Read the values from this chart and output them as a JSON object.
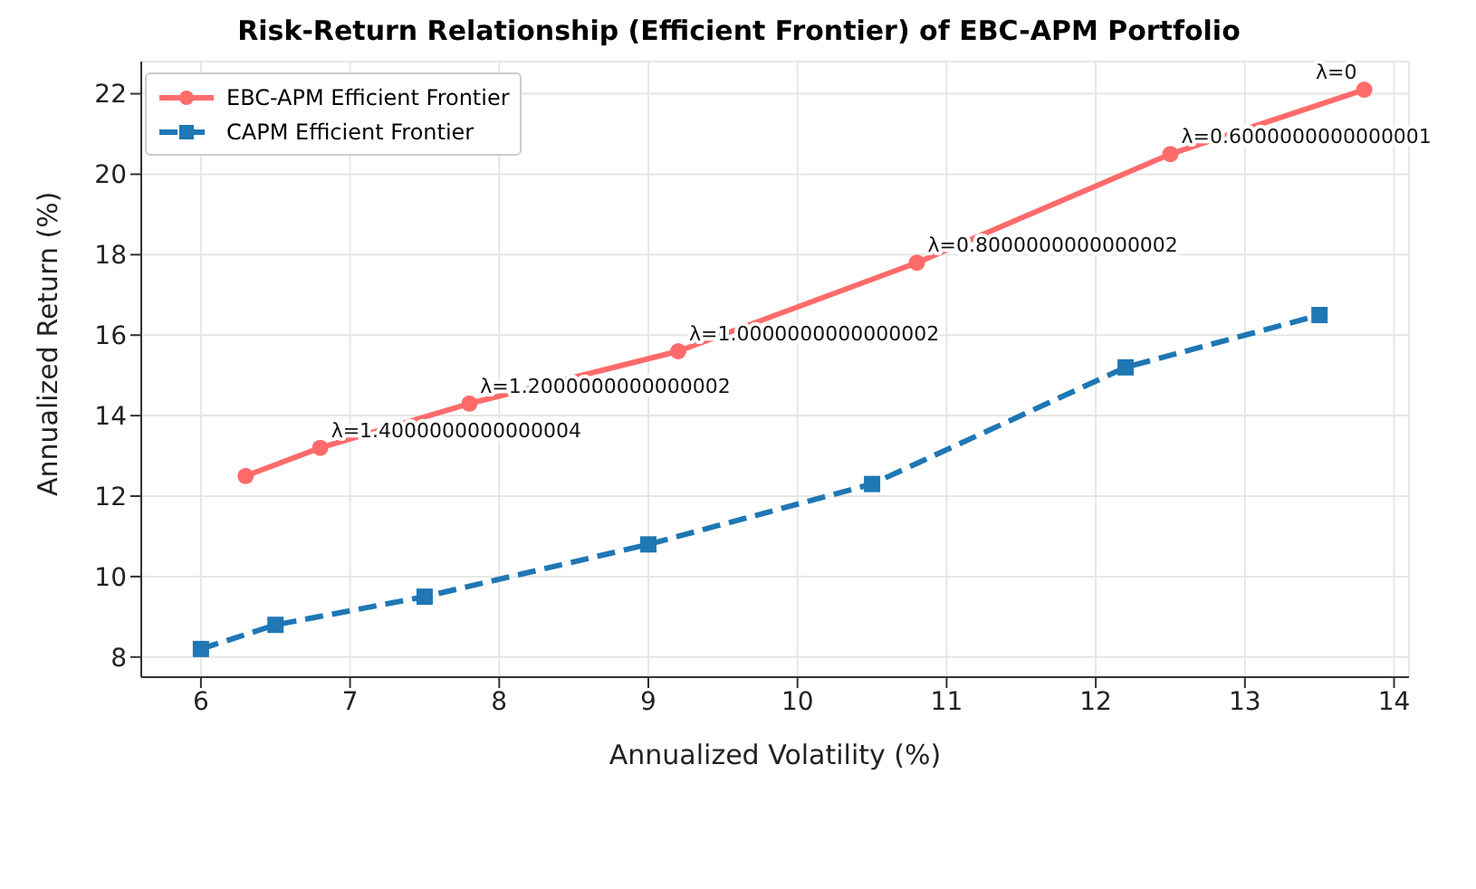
{
  "chart_data": {
    "type": "line",
    "title": "Risk-Return Relationship (Efficient Frontier) of EBC-APM Portfolio",
    "xlabel": "Annualized Volatility (%)",
    "ylabel": "Annualized Return (%)",
    "series": [
      {
        "name": "EBC-APM Efficient Frontier",
        "color": "#ff6b6b",
        "marker": "circle",
        "line_style": "solid",
        "x": [
          6.3,
          6.8,
          7.8,
          9.2,
          10.8,
          12.5,
          13.8
        ],
        "values": [
          12.5,
          13.2,
          14.3,
          15.6,
          17.8,
          20.5,
          22.1
        ]
      },
      {
        "name": "CAPM Efficient Frontier",
        "color": "#1f77b4",
        "marker": "square",
        "line_style": "dashed",
        "x": [
          6.0,
          6.5,
          7.5,
          9.0,
          10.5,
          12.2,
          13.5
        ],
        "values": [
          8.2,
          8.8,
          9.5,
          10.8,
          12.3,
          15.2,
          16.5
        ]
      }
    ],
    "annotations": [
      {
        "text": "λ=1.4000000000000004",
        "x": 6.8,
        "y": 13.2
      },
      {
        "text": "λ=1.2000000000000002",
        "x": 7.8,
        "y": 14.3
      },
      {
        "text": "λ=1.0000000000000002",
        "x": 9.2,
        "y": 15.6
      },
      {
        "text": "λ=0.8000000000000002",
        "x": 10.8,
        "y": 17.8
      },
      {
        "text": "λ=0.6000000000000001",
        "x": 12.5,
        "y": 20.5
      },
      {
        "text": "λ=0",
        "x": 13.8,
        "y": 22.1
      }
    ],
    "xlim": [
      5.6,
      14.1
    ],
    "xticks": [
      6,
      7,
      8,
      9,
      10,
      11,
      12,
      13,
      14
    ],
    "ylim": [
      7.5,
      22.8
    ],
    "yticks": [
      8,
      10,
      12,
      14,
      16,
      18,
      20,
      22
    ],
    "grid": true,
    "legend": "top left"
  }
}
